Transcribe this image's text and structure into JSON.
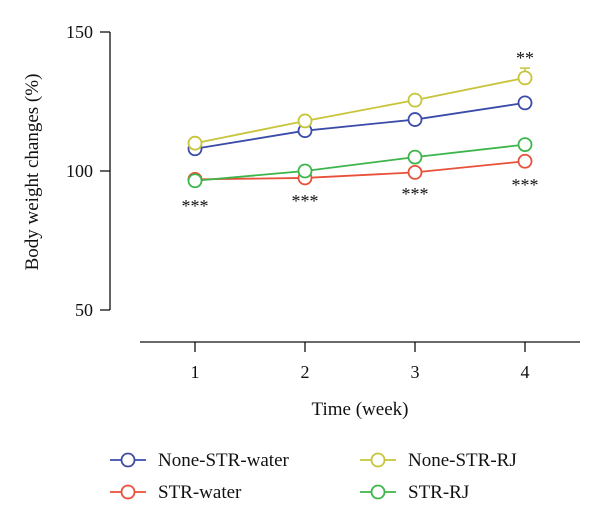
{
  "chart_data": {
    "type": "line",
    "title": "",
    "xlabel": "Time (week)",
    "ylabel": "Body weight changes (%)",
    "x": [
      1,
      2,
      3,
      4
    ],
    "xlim": [
      0.5,
      4.5
    ],
    "ylim": [
      50,
      150
    ],
    "yticks": [
      50,
      100,
      150
    ],
    "xticks": [
      1,
      2,
      3,
      4
    ],
    "grid": false,
    "legend_position": "bottom",
    "series": [
      {
        "name": "None-STR-water",
        "color": "#3b4ba8",
        "values": [
          108,
          114.5,
          118.5,
          124.5
        ],
        "errors": [
          0.8,
          0.8,
          0.8,
          1.2
        ]
      },
      {
        "name": "None-STR-RJ",
        "color": "#c8c43a",
        "values": [
          110,
          118,
          125.5,
          133.5
        ],
        "errors": [
          0.8,
          0.8,
          0.8,
          3.5
        ]
      },
      {
        "name": "STR-water",
        "color": "#e8503a",
        "values": [
          97,
          97.5,
          99.5,
          103.5
        ],
        "errors": [
          0.8,
          0.8,
          0.8,
          0.8
        ]
      },
      {
        "name": "STR-RJ",
        "color": "#3cb54a",
        "values": [
          96.5,
          100,
          105,
          109.5
        ],
        "errors": [
          0.8,
          0.8,
          0.8,
          1.2
        ]
      }
    ],
    "annotations": [
      {
        "x": 1,
        "text": "***",
        "position": "below"
      },
      {
        "x": 2,
        "text": "***",
        "position": "below"
      },
      {
        "x": 3,
        "text": "***",
        "position": "below"
      },
      {
        "x": 4,
        "text": "***",
        "position": "below"
      },
      {
        "x": 4,
        "text": "**",
        "position": "above"
      }
    ]
  },
  "legend": {
    "items": [
      {
        "label": "None-STR-water",
        "color": "#3b4ba8"
      },
      {
        "label": "None-STR-RJ",
        "color": "#c8c43a"
      },
      {
        "label": "STR-water",
        "color": "#e8503a"
      },
      {
        "label": "STR-RJ",
        "color": "#3cb54a"
      }
    ]
  }
}
